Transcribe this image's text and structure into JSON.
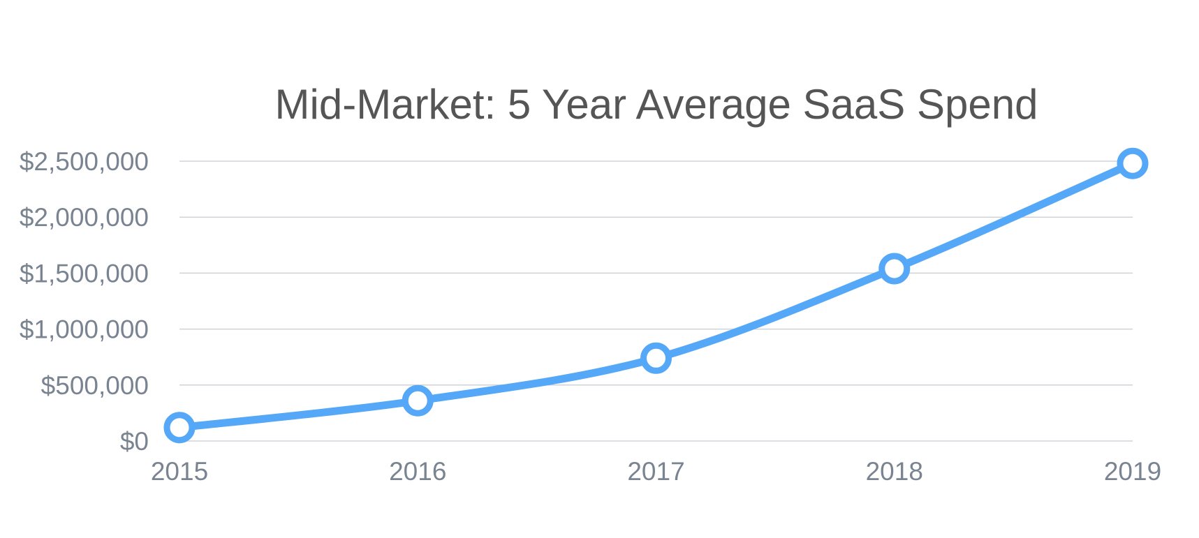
{
  "colors": {
    "series": "#55a8f7",
    "grid": "#cfd3d8",
    "tick_text": "#7a8491",
    "title_text": "#555555"
  },
  "chart_data": {
    "type": "line",
    "title": "Mid-Market: 5 Year Average SaaS Spend",
    "xlabel": "",
    "ylabel": "",
    "categories": [
      "2015",
      "2016",
      "2017",
      "2018",
      "2019"
    ],
    "series": [
      {
        "values": [
          120000,
          360000,
          740000,
          1540000,
          2480000
        ]
      }
    ],
    "ylim": [
      0,
      2500000
    ],
    "yticks": [
      0,
      500000,
      1000000,
      1500000,
      2000000,
      2500000
    ],
    "ytick_labels": [
      "$0",
      "$500,000",
      "$1,000,000",
      "$1,500,000",
      "$2,000,000",
      "$2,500,000"
    ],
    "grid": true,
    "smooth": true,
    "markers": "hollow-circle",
    "legend": "none"
  }
}
